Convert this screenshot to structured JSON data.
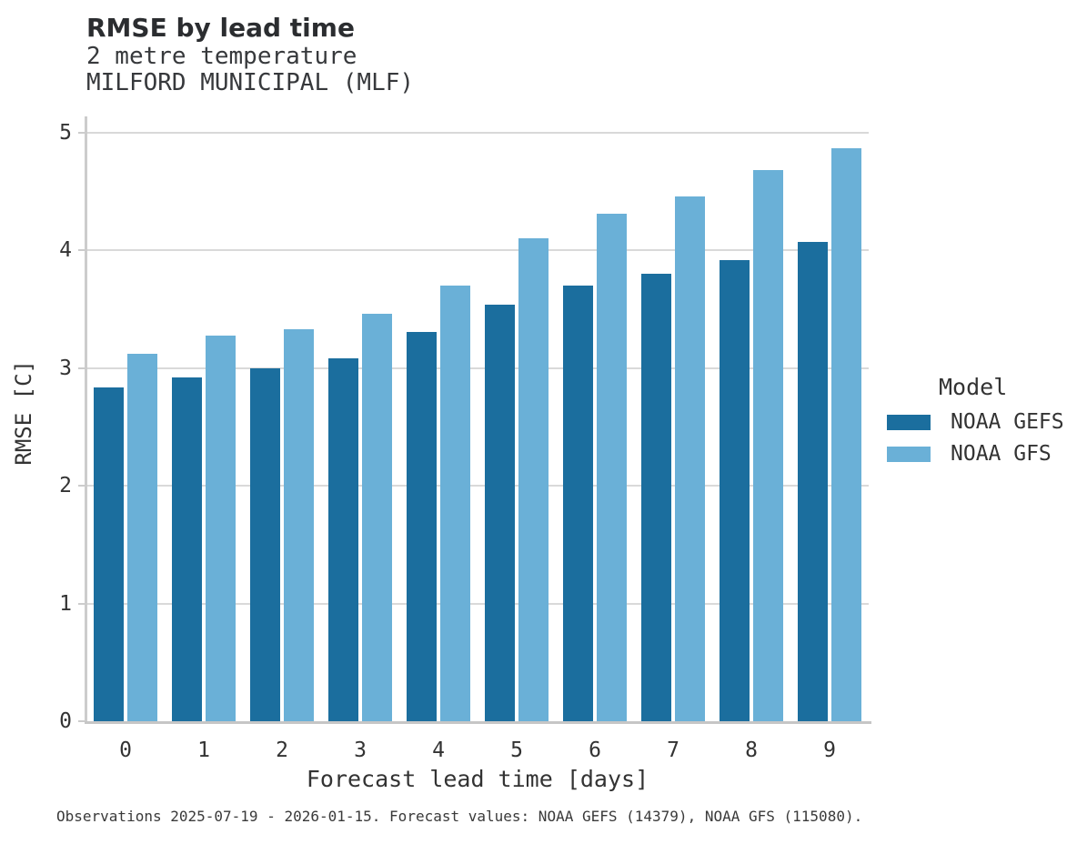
{
  "header": {
    "title": "RMSE by lead time",
    "subtitle_lines": [
      "2 metre temperature",
      "MILFORD MUNICIPAL (MLF)"
    ]
  },
  "chart_data": {
    "type": "bar",
    "title": "RMSE by lead time",
    "subtitle": [
      "2 metre temperature",
      "MILFORD MUNICIPAL (MLF)"
    ],
    "categories": [
      "0",
      "1",
      "2",
      "3",
      "4",
      "5",
      "6",
      "7",
      "8",
      "9"
    ],
    "series": [
      {
        "name": "NOAA GEFS",
        "color": "#1b6e9e",
        "values": [
          2.84,
          2.92,
          3.0,
          3.08,
          3.31,
          3.54,
          3.7,
          3.8,
          3.92,
          4.07
        ]
      },
      {
        "name": "NOAA GFS",
        "color": "#6ab0d7",
        "values": [
          3.12,
          3.28,
          3.33,
          3.46,
          3.7,
          4.1,
          4.31,
          4.46,
          4.68,
          4.87
        ]
      }
    ],
    "xlabel": "Forecast lead time [days]",
    "ylabel": "RMSE [C]",
    "ylim": [
      0,
      5
    ],
    "yticks": [
      0,
      1,
      2,
      3,
      4,
      5
    ],
    "grid": "horizontal-only",
    "legend_title": "Model",
    "legend_position": "right-center"
  },
  "footer": {
    "caption": "Observations 2025-07-19 - 2026-01-15. Forecast values: NOAA GEFS (14379), NOAA GFS (115080)."
  },
  "colors": {
    "grid": "#d9d9d9",
    "spine": "#cccccc",
    "title_text": "#2b2d30",
    "body_text": "#333333"
  }
}
